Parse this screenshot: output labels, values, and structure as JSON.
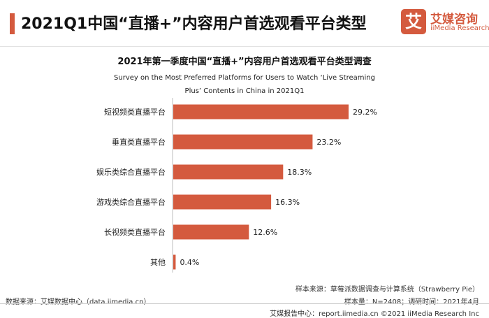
{
  "header": {
    "title": "2021Q1中国“直播+”内容用户首选观看平台类型",
    "logo_mark": "艾",
    "logo_cn": "艾媒咨询",
    "logo_en": "iiMedia Research"
  },
  "chart_data": {
    "type": "bar",
    "orientation": "horizontal",
    "title": "2021年第一季度中国“直播+”内容用户首选观看平台类型调查",
    "subtitle": "Survey on the Most Preferred Platforms for Users to Watch ‘Live Streaming Plus’ Contents in China in 2021Q1",
    "categories": [
      "短视频类直播平台",
      "垂直类直播平台",
      "娱乐类综合直播平台",
      "游戏类综合直播平台",
      "长视频类直播平台",
      "其他"
    ],
    "values": [
      29.2,
      23.2,
      18.3,
      16.3,
      12.6,
      0.4
    ],
    "value_labels": [
      "29.2%",
      "23.2%",
      "18.3%",
      "16.3%",
      "12.6%",
      "0.4%"
    ],
    "unit": "%",
    "xlim": [
      0,
      30
    ],
    "bar_color": "#d45a3e",
    "grid": false
  },
  "footer": {
    "sample_source": "样本来源：草莓派数据调查与计算系统（Strawberry Pie）",
    "sample_info": "样本量：N=2408；调研时间：2021年4月",
    "data_source": "数据来源：艾媒数据中心（data.iimedia.cn）",
    "report_center": "艾媒报告中心：report.iimedia.cn ©2021  iiMedia Research  Inc"
  }
}
